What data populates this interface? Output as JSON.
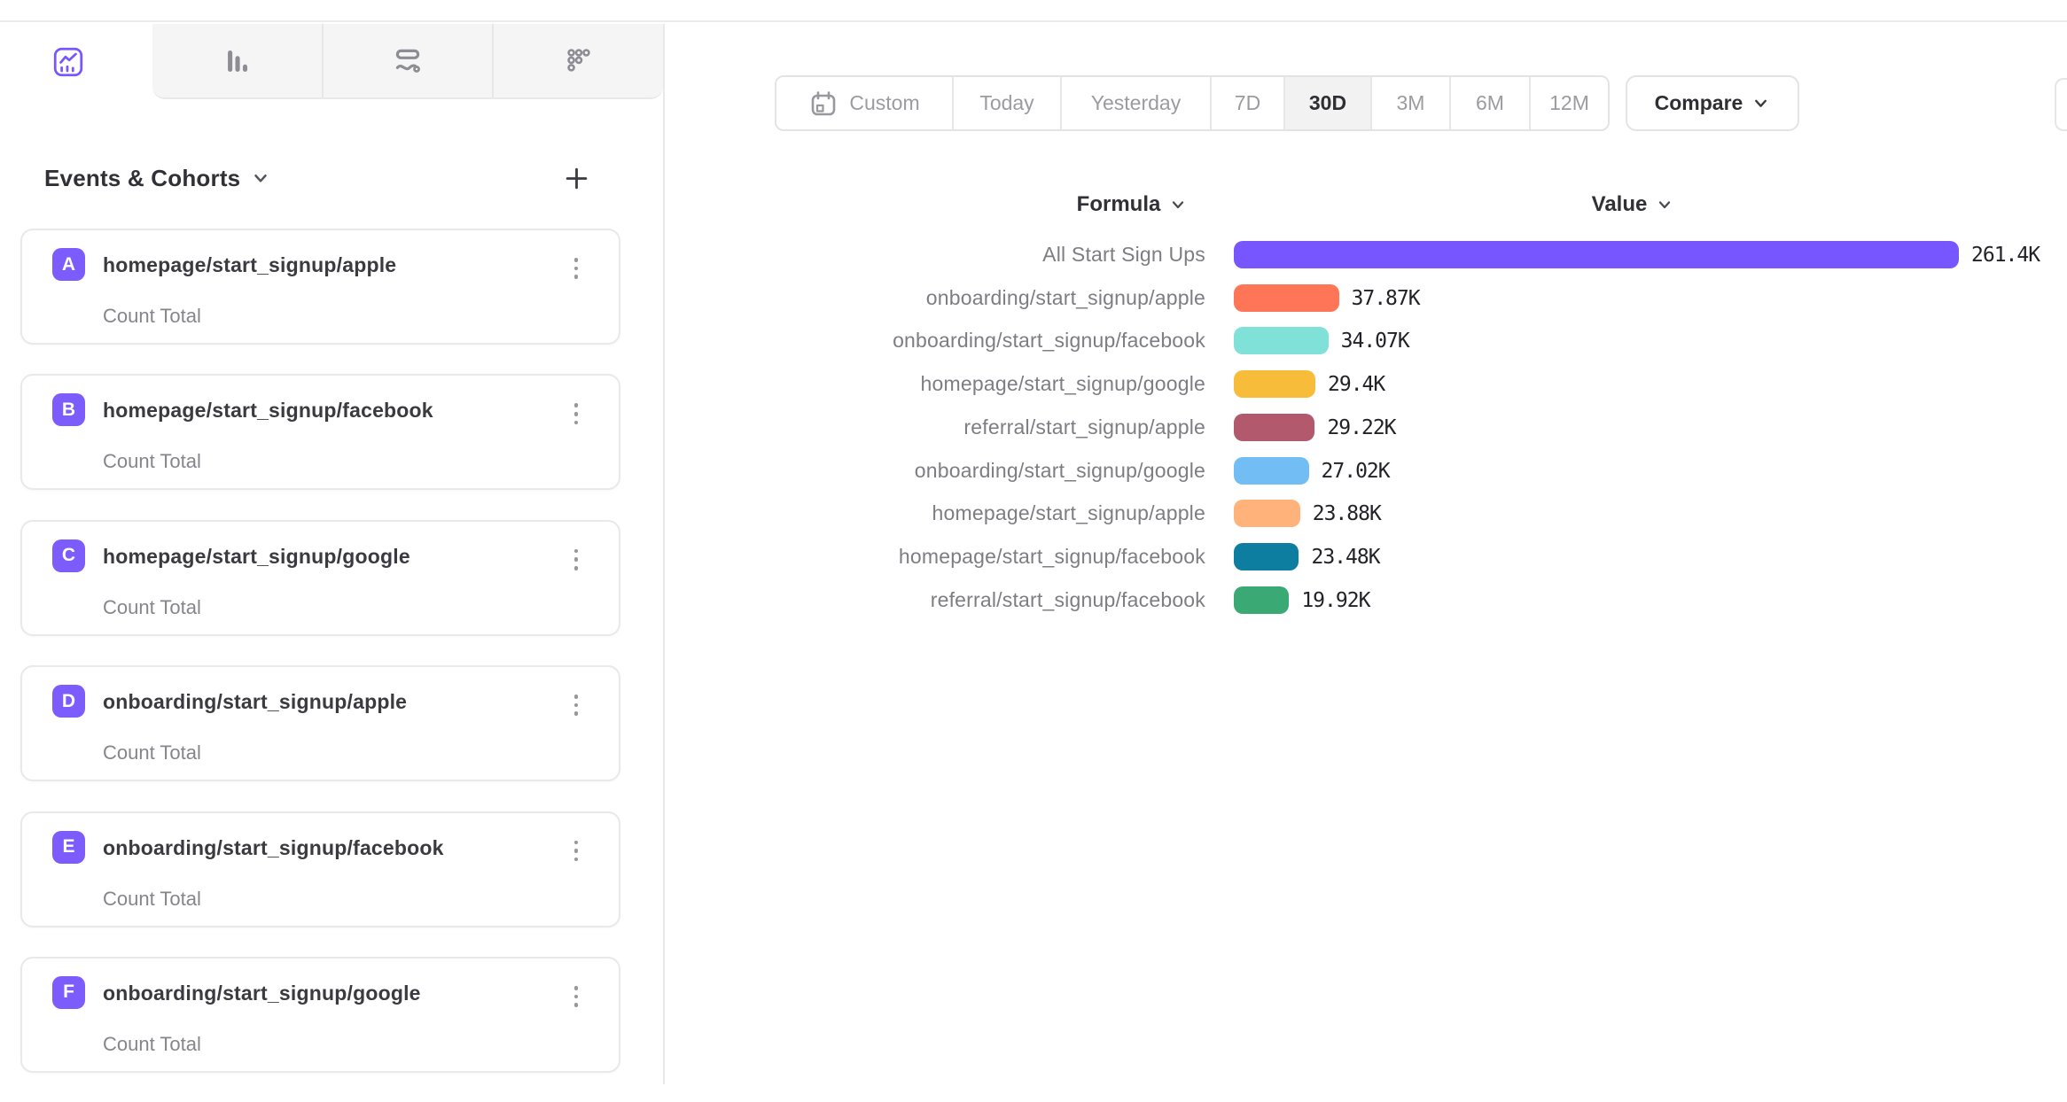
{
  "colors": {
    "accent_purple": "#7856FF",
    "badge_purple": "#7C5CFC",
    "border": "#e9e9eb",
    "tab_bg": "#f5f5f6",
    "selected_segment_bg": "#f2f2f3",
    "label_gray": "#7d7d83",
    "value_dark": "#222228"
  },
  "icons": {
    "insights-tab": "line-chart",
    "bar-chart-tab": "bar-chart",
    "flows-tab": "flow-curve",
    "retention-tab": "dot-grid",
    "custom-range": "calendar",
    "event-menu": "kebab-vertical",
    "add-event": "plus",
    "dropdown": "chevron-down"
  },
  "sidebar": {
    "title": "Events & Cohorts",
    "events": [
      {
        "letter": "A",
        "name": "homepage/start_signup/apple",
        "metric": "Count Total"
      },
      {
        "letter": "B",
        "name": "homepage/start_signup/facebook",
        "metric": "Count Total"
      },
      {
        "letter": "C",
        "name": "homepage/start_signup/google",
        "metric": "Count Total"
      },
      {
        "letter": "D",
        "name": "onboarding/start_signup/apple",
        "metric": "Count Total"
      },
      {
        "letter": "E",
        "name": "onboarding/start_signup/facebook",
        "metric": "Count Total"
      },
      {
        "letter": "F",
        "name": "onboarding/start_signup/google",
        "metric": "Count Total"
      }
    ]
  },
  "toolbar": {
    "ranges": [
      "Custom",
      "Today",
      "Yesterday",
      "7D",
      "30D",
      "3M",
      "6M",
      "12M"
    ],
    "selected_range": "30D",
    "compare_label": "Compare"
  },
  "chart": {
    "formula_header": "Formula",
    "value_header": "Value"
  },
  "chart_data": {
    "type": "bar",
    "orientation": "horizontal",
    "title": "",
    "xlabel": "Value",
    "ylabel": "Formula",
    "xlim": [
      0,
      261400
    ],
    "grid": false,
    "categories": [
      "All Start Sign Ups",
      "onboarding/start_signup/apple",
      "onboarding/start_signup/facebook",
      "homepage/start_signup/google",
      "referral/start_signup/apple",
      "onboarding/start_signup/google",
      "homepage/start_signup/apple",
      "homepage/start_signup/facebook",
      "referral/start_signup/facebook"
    ],
    "values": [
      261400,
      37870,
      34070,
      29400,
      29220,
      27020,
      23880,
      23480,
      19920
    ],
    "value_labels": [
      "261.4K",
      "37.87K",
      "34.07K",
      "29.4K",
      "29.22K",
      "27.02K",
      "23.88K",
      "23.48K",
      "19.92K"
    ],
    "colors": [
      "#7856FF",
      "#FF7557",
      "#80E1D9",
      "#F8BC3B",
      "#B2596E",
      "#72BEF4",
      "#FFB27A",
      "#0D7EA0",
      "#3BA974"
    ]
  }
}
